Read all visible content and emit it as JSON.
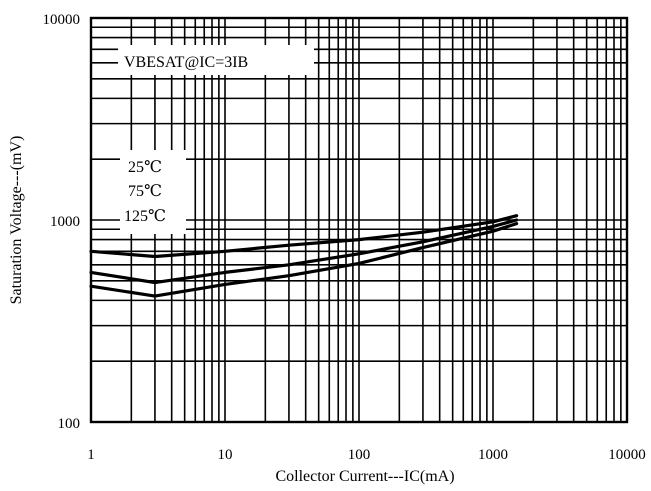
{
  "chart_data": {
    "type": "line",
    "title": "",
    "xlabel": "Collector Current---IC(mA)",
    "ylabel": "Saturation Voltage---(mV)",
    "xscale": "log",
    "yscale": "log",
    "xlim": [
      1,
      10000
    ],
    "ylim": [
      100,
      10000
    ],
    "grid": true,
    "x_ticks": [
      "1",
      "10",
      "100",
      "1000",
      "10000"
    ],
    "y_ticks": [
      "100",
      "1000",
      "10000"
    ],
    "condition_label": "VBESAT@IC=3IB",
    "legend": {
      "placement": "left",
      "entries": [
        "25℃",
        "75℃",
        "125℃"
      ]
    },
    "series": [
      {
        "name": "25℃",
        "x": [
          1,
          3,
          10,
          30,
          100,
          300,
          1000,
          1500
        ],
        "y": [
          700,
          660,
          700,
          750,
          800,
          870,
          980,
          1050
        ]
      },
      {
        "name": "75℃",
        "x": [
          1,
          3,
          10,
          30,
          100,
          300,
          1000,
          1500
        ],
        "y": [
          550,
          490,
          550,
          600,
          680,
          780,
          930,
          1000
        ]
      },
      {
        "name": "125℃",
        "x": [
          1,
          3,
          10,
          30,
          100,
          300,
          1000,
          1500
        ],
        "y": [
          470,
          420,
          480,
          530,
          610,
          730,
          880,
          960
        ]
      }
    ]
  }
}
